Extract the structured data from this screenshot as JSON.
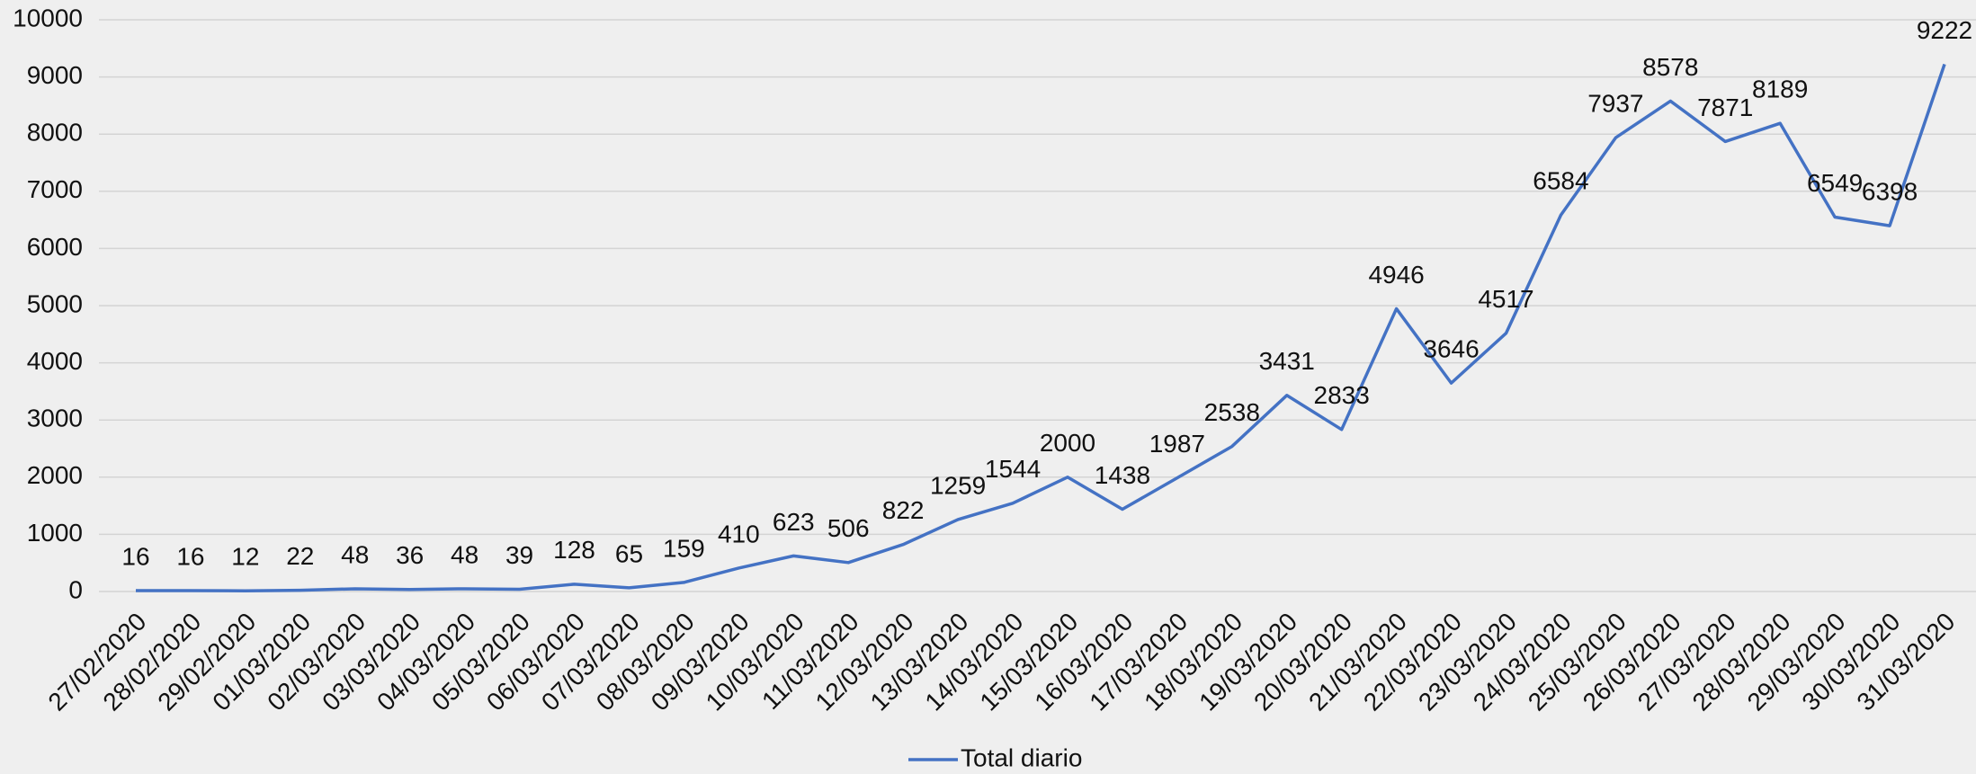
{
  "chart_data": {
    "type": "line",
    "categories": [
      "27/02/2020",
      "28/02/2020",
      "29/02/2020",
      "01/03/2020",
      "02/03/2020",
      "03/03/2020",
      "04/03/2020",
      "05/03/2020",
      "06/03/2020",
      "07/03/2020",
      "08/03/2020",
      "09/03/2020",
      "10/03/2020",
      "11/03/2020",
      "12/03/2020",
      "13/03/2020",
      "14/03/2020",
      "15/03/2020",
      "16/03/2020",
      "17/03/2020",
      "18/03/2020",
      "19/03/2020",
      "20/03/2020",
      "21/03/2020",
      "22/03/2020",
      "23/03/2020",
      "24/03/2020",
      "25/03/2020",
      "26/03/2020",
      "27/03/2020",
      "28/03/2020",
      "29/03/2020",
      "30/03/2020",
      "31/03/2020"
    ],
    "series": [
      {
        "name": "Total diario",
        "color": "#4472c4",
        "values": [
          16,
          16,
          12,
          22,
          48,
          36,
          48,
          39,
          128,
          65,
          159,
          410,
          623,
          506,
          822,
          1259,
          1544,
          2000,
          1438,
          1987,
          2538,
          3431,
          2833,
          4946,
          3646,
          4517,
          6584,
          7937,
          8578,
          7871,
          8189,
          6549,
          6398,
          9222
        ]
      }
    ],
    "ylim": [
      0,
      10000
    ],
    "yticks": [
      0,
      1000,
      2000,
      3000,
      4000,
      5000,
      6000,
      7000,
      8000,
      9000,
      10000
    ],
    "grid": true,
    "legend": "bottom"
  }
}
